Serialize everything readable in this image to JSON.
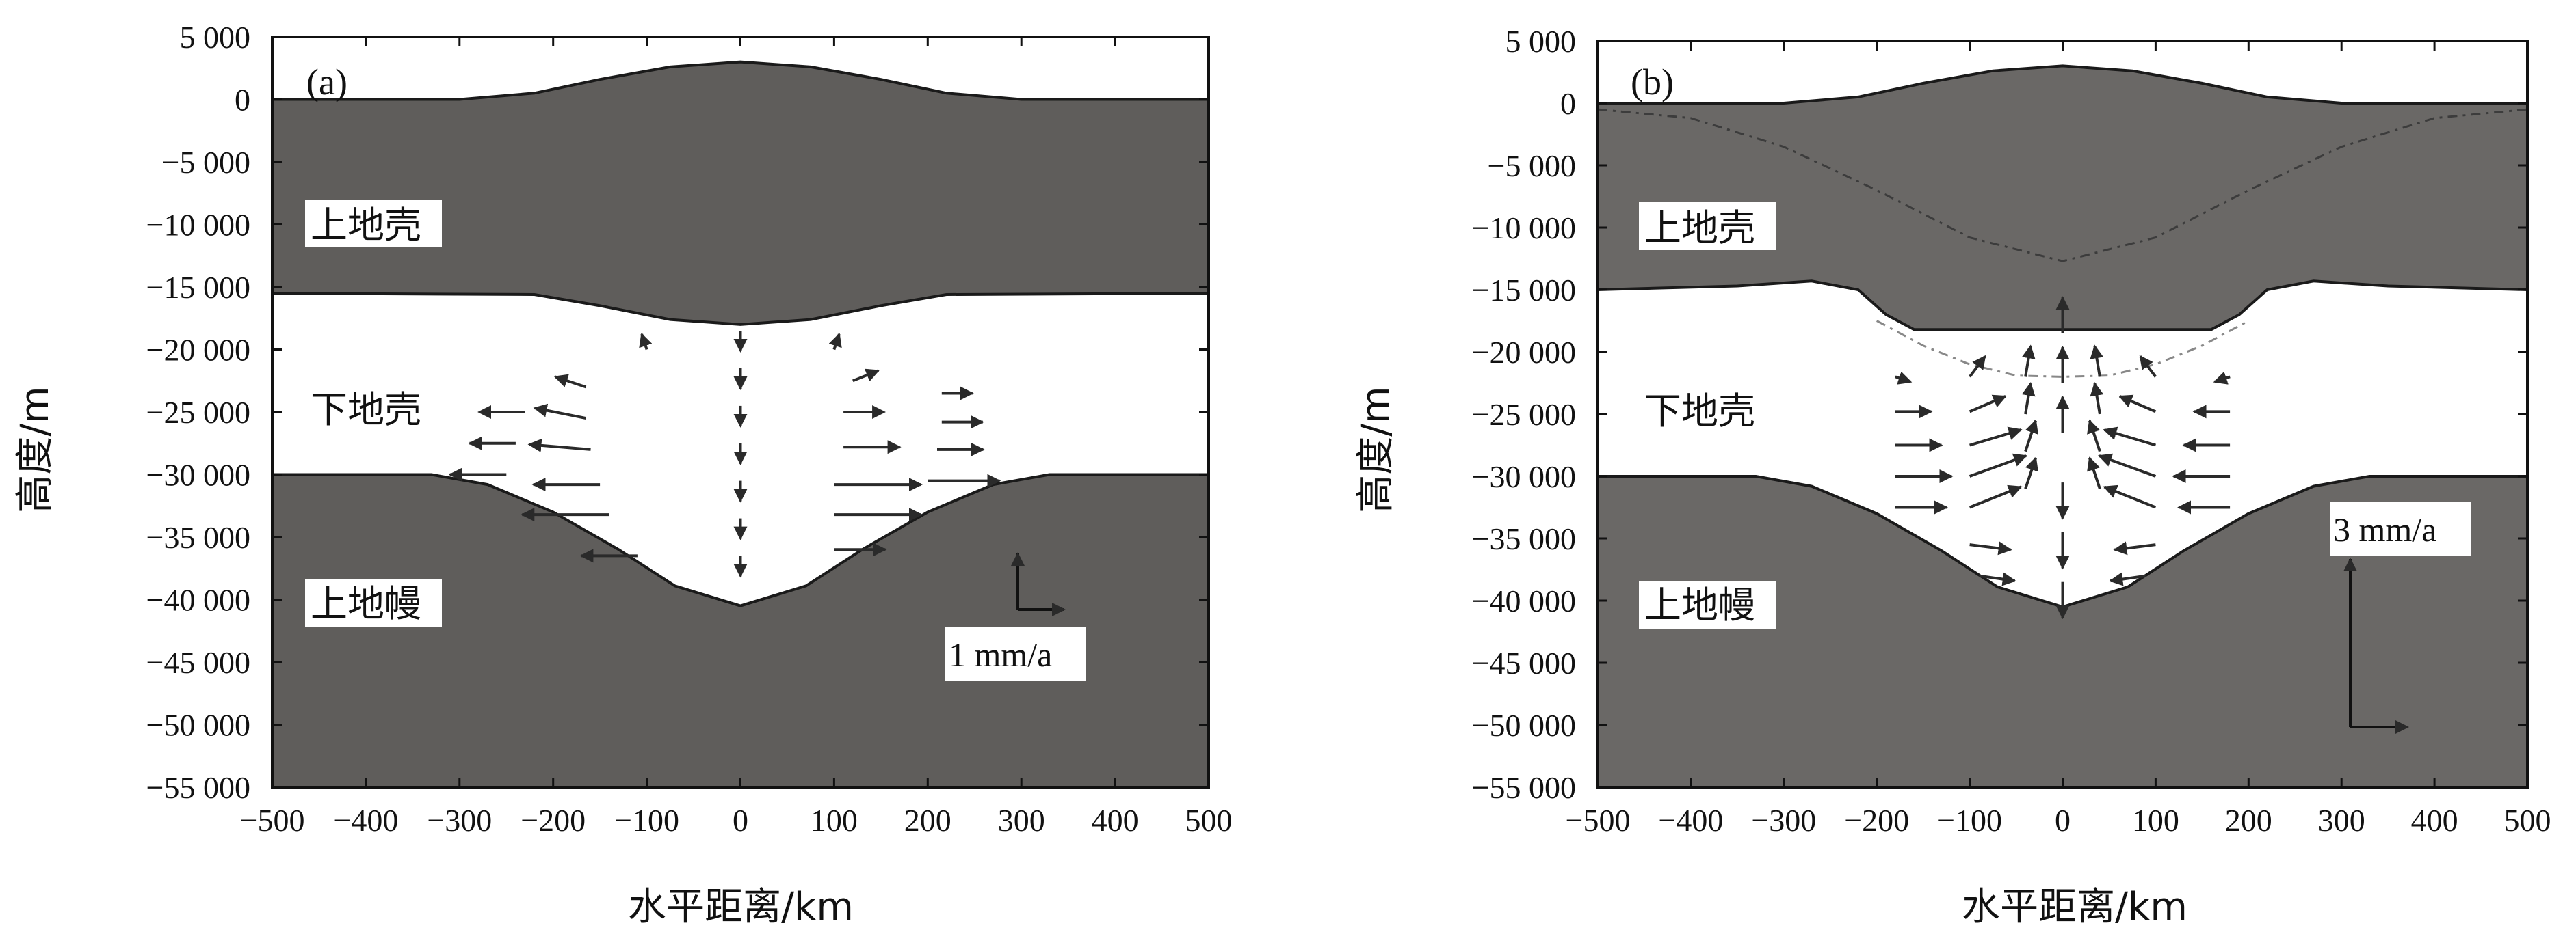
{
  "chart_data": [
    {
      "type": "cross-section",
      "panel_label": "(a)",
      "xlabel": "水平距离/km",
      "ylabel": "高度/m",
      "xlim": [
        -500,
        500
      ],
      "ylim": [
        -55000,
        5000
      ],
      "xticks": [
        -500,
        -400,
        -300,
        -200,
        -100,
        0,
        100,
        200,
        300,
        400,
        500
      ],
      "yticks": [
        5000,
        0,
        -5000,
        -10000,
        -15000,
        -20000,
        -25000,
        -30000,
        -35000,
        -40000,
        -45000,
        -50000,
        -55000
      ],
      "xtick_labels": [
        "−500",
        "−400",
        "−300",
        "−200",
        "−100",
        "0",
        "100",
        "200",
        "300",
        "400",
        "500"
      ],
      "ytick_labels": [
        "5 000",
        "0",
        "−5 000",
        "−10 000",
        "−15 000",
        "−20 000",
        "−25 000",
        "−30 000",
        "−35 000",
        "−40 000",
        "−45 000",
        "−50 000",
        "−55 000"
      ],
      "layers": [
        {
          "label": "上地壳",
          "fill": "#5f5d5b"
        },
        {
          "label": "下地壳",
          "fill": "#ffffff"
        },
        {
          "label": "上地幔",
          "fill": "#5f5d5b"
        }
      ],
      "topography": [
        [
          -500,
          0
        ],
        [
          -300,
          0
        ],
        [
          -220,
          500
        ],
        [
          -150,
          1600
        ],
        [
          -75,
          2600
        ],
        [
          0,
          3000
        ],
        [
          75,
          2600
        ],
        [
          150,
          1600
        ],
        [
          220,
          500
        ],
        [
          300,
          0
        ],
        [
          500,
          0
        ]
      ],
      "upper_lower_crust_boundary": [
        [
          -500,
          -15500
        ],
        [
          -220,
          -15600
        ],
        [
          -150,
          -16500
        ],
        [
          -75,
          -17600
        ],
        [
          0,
          -18000
        ],
        [
          75,
          -17600
        ],
        [
          150,
          -16500
        ],
        [
          220,
          -15600
        ],
        [
          500,
          -15500
        ]
      ],
      "moho": [
        [
          -500,
          -30000
        ],
        [
          -330,
          -30000
        ],
        [
          -270,
          -30800
        ],
        [
          -200,
          -33000
        ],
        [
          -130,
          -36000
        ],
        [
          -70,
          -38900
        ],
        [
          0,
          -40500
        ],
        [
          70,
          -38900
        ],
        [
          130,
          -36000
        ],
        [
          200,
          -33000
        ],
        [
          270,
          -30800
        ],
        [
          330,
          -30000
        ],
        [
          500,
          -30000
        ]
      ],
      "velocity_arrows": [
        {
          "x": -230,
          "y": -25000,
          "u": -0.45,
          "v": 0
        },
        {
          "x": -240,
          "y": -27500,
          "u": -0.45,
          "v": 0
        },
        {
          "x": -250,
          "y": -30000,
          "u": -0.55,
          "v": 0
        },
        {
          "x": -165,
          "y": -23000,
          "u": -0.3,
          "v": 0.1
        },
        {
          "x": -165,
          "y": -25500,
          "u": -0.5,
          "v": 0.1
        },
        {
          "x": -160,
          "y": -28000,
          "u": -0.6,
          "v": 0.05
        },
        {
          "x": -150,
          "y": -30800,
          "u": -0.65,
          "v": 0
        },
        {
          "x": -140,
          "y": -33200,
          "u": -0.85,
          "v": 0
        },
        {
          "x": -110,
          "y": -36500,
          "u": -0.55,
          "v": 0
        },
        {
          "x": -100,
          "y": -20000,
          "u": -0.05,
          "v": 0.15
        },
        {
          "x": 100,
          "y": -20000,
          "u": 0.05,
          "v": 0.15
        },
        {
          "x": 120,
          "y": -22500,
          "u": 0.25,
          "v": 0.1
        },
        {
          "x": 110,
          "y": -25000,
          "u": 0.4,
          "v": 0
        },
        {
          "x": 110,
          "y": -27800,
          "u": 0.55,
          "v": 0
        },
        {
          "x": 100,
          "y": -30800,
          "u": 0.85,
          "v": 0
        },
        {
          "x": 100,
          "y": -33200,
          "u": 0.85,
          "v": 0
        },
        {
          "x": 100,
          "y": -36000,
          "u": 0.5,
          "v": 0
        },
        {
          "x": 215,
          "y": -23500,
          "u": 0.3,
          "v": 0
        },
        {
          "x": 215,
          "y": -25800,
          "u": 0.4,
          "v": 0
        },
        {
          "x": 210,
          "y": -28000,
          "u": 0.45,
          "v": 0
        },
        {
          "x": 200,
          "y": -30500,
          "u": 0.7,
          "v": 0
        },
        {
          "x": 0,
          "y": -18500,
          "u": 0,
          "v": -0.2
        },
        {
          "x": 0,
          "y": -21500,
          "u": 0,
          "v": -0.2
        },
        {
          "x": 0,
          "y": -24500,
          "u": 0,
          "v": -0.2
        },
        {
          "x": 0,
          "y": -27500,
          "u": 0,
          "v": -0.2
        },
        {
          "x": 0,
          "y": -30500,
          "u": 0,
          "v": -0.2
        },
        {
          "x": 0,
          "y": -33500,
          "u": 0,
          "v": -0.2
        },
        {
          "x": 0,
          "y": -36500,
          "u": 0,
          "v": -0.2
        }
      ],
      "scale_arrow_label": "1 mm/a"
    },
    {
      "type": "cross-section",
      "panel_label": "(b)",
      "xlabel": "水平距离/km",
      "ylabel": "高度/m",
      "xlim": [
        -500,
        500
      ],
      "ylim": [
        -55000,
        5000
      ],
      "xticks": [
        -500,
        -400,
        -300,
        -200,
        -100,
        0,
        100,
        200,
        300,
        400,
        500
      ],
      "yticks": [
        5000,
        0,
        -5000,
        -10000,
        -15000,
        -20000,
        -25000,
        -30000,
        -35000,
        -40000,
        -45000,
        -50000,
        -55000
      ],
      "xtick_labels": [
        "−500",
        "−400",
        "−300",
        "−200",
        "−100",
        "0",
        "100",
        "200",
        "300",
        "400",
        "500"
      ],
      "ytick_labels": [
        "5 000",
        "0",
        "−5 000",
        "−10 000",
        "−15 000",
        "−20 000",
        "−25 000",
        "−30 000",
        "−35 000",
        "−40 000",
        "−45 000",
        "−50 000",
        "−55 000"
      ],
      "layers": [
        {
          "label": "上地壳",
          "fill": "#6a6866"
        },
        {
          "label": "下地壳",
          "fill": "#ffffff"
        },
        {
          "label": "上地幔",
          "fill": "#6a6866"
        }
      ],
      "topography": [
        [
          -500,
          0
        ],
        [
          -300,
          0
        ],
        [
          -220,
          500
        ],
        [
          -150,
          1600
        ],
        [
          -75,
          2600
        ],
        [
          0,
          3000
        ],
        [
          75,
          2600
        ],
        [
          150,
          1600
        ],
        [
          220,
          500
        ],
        [
          300,
          0
        ],
        [
          500,
          0
        ]
      ],
      "upper_lower_crust_boundary": [
        [
          -500,
          -15000
        ],
        [
          -350,
          -14700
        ],
        [
          -270,
          -14300
        ],
        [
          -220,
          -15000
        ],
        [
          -190,
          -17000
        ],
        [
          -160,
          -18200
        ],
        [
          160,
          -18200
        ],
        [
          190,
          -17000
        ],
        [
          220,
          -15000
        ],
        [
          270,
          -14300
        ],
        [
          350,
          -14700
        ],
        [
          500,
          -15000
        ]
      ],
      "moho": [
        [
          -500,
          -30000
        ],
        [
          -330,
          -30000
        ],
        [
          -270,
          -30800
        ],
        [
          -200,
          -33000
        ],
        [
          -130,
          -36000
        ],
        [
          -70,
          -38900
        ],
        [
          0,
          -40500
        ],
        [
          70,
          -38900
        ],
        [
          130,
          -36000
        ],
        [
          200,
          -33000
        ],
        [
          270,
          -30800
        ],
        [
          330,
          -30000
        ],
        [
          500,
          -30000
        ]
      ],
      "initial_boundaries_dashed": [
        [
          [
            -500,
            -500
          ],
          [
            -400,
            -1200
          ],
          [
            -300,
            -3500
          ],
          [
            -200,
            -7000
          ],
          [
            -100,
            -10800
          ],
          [
            0,
            -12700
          ],
          [
            100,
            -10800
          ],
          [
            200,
            -7000
          ],
          [
            300,
            -3500
          ],
          [
            400,
            -1200
          ],
          [
            500,
            -500
          ]
        ],
        [
          [
            -200,
            -17500
          ],
          [
            -150,
            -19500
          ],
          [
            -100,
            -21000
          ],
          [
            -50,
            -21900
          ],
          [
            0,
            -22000
          ],
          [
            50,
            -21900
          ],
          [
            100,
            -21000
          ],
          [
            150,
            -19500
          ],
          [
            200,
            -17500
          ]
        ]
      ],
      "velocity_arrows": [
        {
          "x": -180,
          "y": -22000,
          "u": 0.15,
          "v": -0.05
        },
        {
          "x": -180,
          "y": -24800,
          "u": 0.35,
          "v": 0
        },
        {
          "x": -180,
          "y": -27500,
          "u": 0.45,
          "v": 0
        },
        {
          "x": -180,
          "y": -30000,
          "u": 0.55,
          "v": 0
        },
        {
          "x": -180,
          "y": -32500,
          "u": 0.5,
          "v": 0
        },
        {
          "x": -100,
          "y": -22000,
          "u": 0.15,
          "v": 0.2
        },
        {
          "x": -100,
          "y": -24800,
          "u": 0.35,
          "v": 0.15
        },
        {
          "x": -100,
          "y": -27500,
          "u": 0.5,
          "v": 0.15
        },
        {
          "x": -100,
          "y": -30000,
          "u": 0.55,
          "v": 0.2
        },
        {
          "x": -100,
          "y": -32500,
          "u": 0.5,
          "v": 0.2
        },
        {
          "x": -100,
          "y": -35500,
          "u": 0.4,
          "v": -0.05
        },
        {
          "x": -90,
          "y": -38000,
          "u": 0.35,
          "v": -0.05
        },
        {
          "x": -40,
          "y": -22000,
          "u": 0.05,
          "v": 0.3
        },
        {
          "x": -40,
          "y": -25000,
          "u": 0.05,
          "v": 0.3
        },
        {
          "x": -40,
          "y": -28000,
          "u": 0.1,
          "v": 0.3
        },
        {
          "x": -40,
          "y": -31000,
          "u": 0.1,
          "v": 0.3
        },
        {
          "x": 40,
          "y": -22000,
          "u": -0.05,
          "v": 0.3
        },
        {
          "x": 40,
          "y": -25000,
          "u": -0.05,
          "v": 0.3
        },
        {
          "x": 40,
          "y": -28000,
          "u": -0.1,
          "v": 0.3
        },
        {
          "x": 40,
          "y": -31000,
          "u": -0.1,
          "v": 0.3
        },
        {
          "x": 100,
          "y": -22000,
          "u": -0.15,
          "v": 0.2
        },
        {
          "x": 100,
          "y": -24800,
          "u": -0.35,
          "v": 0.15
        },
        {
          "x": 100,
          "y": -27500,
          "u": -0.5,
          "v": 0.15
        },
        {
          "x": 100,
          "y": -30000,
          "u": -0.55,
          "v": 0.2
        },
        {
          "x": 100,
          "y": -32500,
          "u": -0.5,
          "v": 0.2
        },
        {
          "x": 100,
          "y": -35500,
          "u": -0.4,
          "v": -0.05
        },
        {
          "x": 90,
          "y": -38000,
          "u": -0.35,
          "v": -0.05
        },
        {
          "x": 180,
          "y": -22000,
          "u": -0.15,
          "v": -0.05
        },
        {
          "x": 180,
          "y": -24800,
          "u": -0.35,
          "v": 0
        },
        {
          "x": 180,
          "y": -27500,
          "u": -0.45,
          "v": 0
        },
        {
          "x": 180,
          "y": -30000,
          "u": -0.55,
          "v": 0
        },
        {
          "x": 180,
          "y": -32500,
          "u": -0.5,
          "v": 0
        },
        {
          "x": 0,
          "y": -18500,
          "u": 0,
          "v": 0.35
        },
        {
          "x": 0,
          "y": -22500,
          "u": 0,
          "v": 0.35
        },
        {
          "x": 0,
          "y": -26500,
          "u": 0,
          "v": 0.35
        },
        {
          "x": 0,
          "y": -30500,
          "u": 0,
          "v": -0.35
        },
        {
          "x": 0,
          "y": -34500,
          "u": 0,
          "v": -0.35
        },
        {
          "x": 0,
          "y": -38500,
          "u": 0,
          "v": -0.35
        }
      ],
      "scale_arrow_label": "3 mm/a"
    }
  ]
}
